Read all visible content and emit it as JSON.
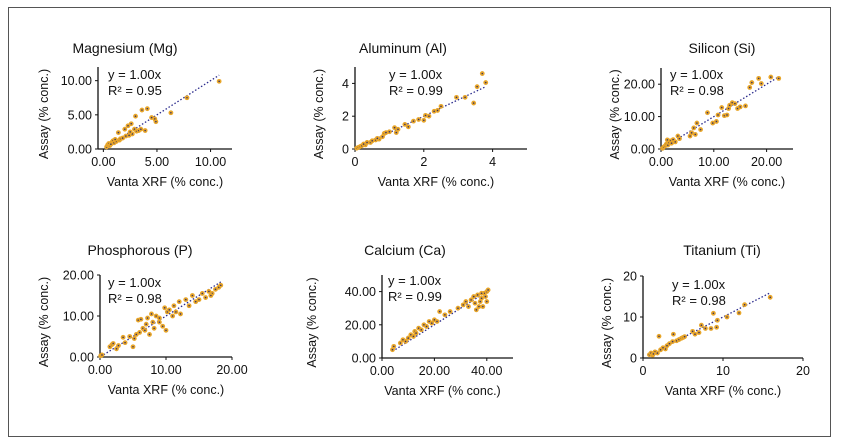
{
  "chart_data": [
    {
      "type": "scatter",
      "title": "Magnesium (Mg)",
      "xlabel": "Vanta XRF (% conc.)",
      "ylabel": "Assay (% conc.)",
      "xlim": [
        -0.5,
        12
      ],
      "ylim": [
        0,
        12
      ],
      "xticks": [
        0,
        5,
        10
      ],
      "xtick_labels": [
        "0.00",
        "5.00",
        "10.00"
      ],
      "yticks": [
        0,
        5,
        10
      ],
      "ytick_labels": [
        "0.00",
        "5.00",
        "10.00"
      ],
      "equation": "y = 1.00x",
      "r2": "R² = 0.95",
      "trend_slope": 1.0,
      "x": [
        0.3,
        0.4,
        0.5,
        0.6,
        0.8,
        0.9,
        1.0,
        1.2,
        1.4,
        1.5,
        1.6,
        1.8,
        2.0,
        2.1,
        2.3,
        2.4,
        2.6,
        2.7,
        2.9,
        3.0,
        3.1,
        3.3,
        3.5,
        3.6,
        3.9,
        4.1,
        4.5,
        4.8,
        4.9,
        6.3,
        7.8,
        10.8,
        1.1,
        2.5,
        0.7
      ],
      "y": [
        0.3,
        0.6,
        0.8,
        0.5,
        1.0,
        1.2,
        0.9,
        1.1,
        2.4,
        1.3,
        1.5,
        1.6,
        2.9,
        1.9,
        3.4,
        2.0,
        3.7,
        2.2,
        2.9,
        4.8,
        2.6,
        2.7,
        2.9,
        5.7,
        2.7,
        5.9,
        4.6,
        4.4,
        4.0,
        5.3,
        7.5,
        9.9,
        1.4,
        2.5,
        0.7
      ]
    },
    {
      "type": "scatter",
      "title": "Aluminum (Al)",
      "xlabel": "Vanta XRF (% conc.)",
      "ylabel": "Assay (% conc.)",
      "xlim": [
        0,
        5
      ],
      "ylim": [
        0,
        5
      ],
      "xticks": [
        0,
        2,
        4
      ],
      "xtick_labels": [
        "0",
        "2",
        "4"
      ],
      "yticks": [
        0,
        2,
        4
      ],
      "ytick_labels": [
        "0",
        "2",
        "4"
      ],
      "equation": "y = 1.00x",
      "r2": "R² = 0.99",
      "trend_slope": 1.0,
      "x": [
        0.05,
        0.1,
        0.15,
        0.2,
        0.3,
        0.35,
        0.45,
        0.5,
        0.6,
        0.7,
        0.8,
        0.85,
        0.9,
        1.0,
        1.15,
        1.2,
        1.25,
        1.45,
        1.55,
        1.7,
        1.85,
        2.0,
        2.05,
        2.15,
        2.3,
        2.4,
        2.5,
        2.95,
        3.2,
        3.45,
        3.55,
        3.7,
        3.8,
        0.25,
        0.65
      ],
      "y": [
        0.05,
        0.1,
        0.15,
        0.2,
        0.25,
        0.4,
        0.4,
        0.5,
        0.55,
        0.6,
        0.75,
        0.95,
        1.0,
        1.05,
        1.3,
        1.0,
        1.2,
        1.5,
        1.35,
        1.7,
        1.8,
        1.75,
        2.05,
        2.0,
        2.3,
        2.35,
        2.6,
        3.15,
        3.15,
        2.8,
        3.8,
        4.6,
        4.05,
        0.3,
        0.65
      ]
    },
    {
      "type": "scatter",
      "title": "Silicon (Si)",
      "xlabel": "Vanta XRF (% conc.)",
      "ylabel": "Assay (% conc.)",
      "xlim": [
        0,
        25
      ],
      "ylim": [
        0,
        25
      ],
      "xticks": [
        0,
        10,
        20
      ],
      "xtick_labels": [
        "0.00",
        "10.00",
        "20.00"
      ],
      "yticks": [
        0,
        10,
        20
      ],
      "ytick_labels": [
        "0.00",
        "10.00",
        "20.00"
      ],
      "equation": "y = 1.00x",
      "r2": "R² = 0.98",
      "trend_slope": 1.0,
      "x": [
        0.3,
        0.5,
        0.8,
        1.0,
        1.2,
        1.3,
        1.5,
        1.8,
        2.0,
        2.3,
        2.7,
        3.2,
        3.5,
        5.5,
        5.8,
        6.2,
        6.5,
        6.8,
        7.5,
        8.8,
        9.8,
        10.5,
        10.8,
        11.5,
        12.0,
        12.5,
        12.8,
        13.0,
        13.5,
        14.0,
        14.5,
        15.0,
        16.0,
        16.8,
        17.2,
        18.5,
        19.0,
        20.8,
        22.3
      ],
      "y": [
        0.2,
        0.6,
        1.0,
        1.5,
        2.8,
        1.2,
        2.0,
        2.5,
        1.8,
        2.9,
        2.2,
        4.0,
        3.2,
        4.0,
        5.0,
        6.5,
        4.5,
        8.0,
        6.0,
        11.2,
        8.0,
        8.5,
        10.5,
        12.8,
        10.3,
        10.5,
        12.5,
        13.5,
        14.3,
        14.0,
        12.5,
        13.0,
        13.3,
        19.0,
        20.5,
        21.8,
        20.2,
        22.2,
        21.8
      ]
    },
    {
      "type": "scatter",
      "title": "Phosphorous (P)",
      "xlabel": "Vanta XRF (% conc.)",
      "ylabel": "Assay (% conc.)",
      "xlim": [
        0,
        20
      ],
      "ylim": [
        0,
        20
      ],
      "xticks": [
        0,
        10,
        20
      ],
      "xtick_labels": [
        "0.00",
        "10.00",
        "20.00"
      ],
      "yticks": [
        0,
        10,
        20
      ],
      "ytick_labels": [
        "0.00",
        "10.00",
        "20.00"
      ],
      "equation": "y = 1.00x",
      "r2": "R² = 0.98",
      "trend_slope": 1.0,
      "x": [
        0.1,
        0.3,
        1.5,
        1.8,
        2.0,
        2.5,
        2.8,
        3.5,
        3.8,
        4.5,
        5.0,
        5.2,
        5.5,
        5.8,
        6.0,
        6.2,
        6.5,
        7.0,
        7.2,
        7.5,
        7.8,
        8.0,
        8.2,
        8.5,
        9.0,
        9.5,
        9.8,
        10.0,
        10.2,
        10.5,
        11.0,
        11.2,
        11.5,
        12.0,
        12.2,
        13.0,
        13.5,
        14.0,
        14.5,
        15.0,
        15.5,
        16.0,
        16.5,
        17.0,
        17.5,
        18.0,
        18.3,
        16.8,
        9.0,
        6.8
      ],
      "y": [
        0.3,
        0.5,
        2.5,
        3.0,
        3.3,
        2.0,
        2.8,
        4.8,
        3.5,
        5.0,
        2.5,
        4.5,
        5.5,
        9.0,
        6.0,
        9.2,
        7.0,
        8.0,
        9.5,
        5.5,
        10.5,
        8.5,
        7.0,
        10.0,
        8.5,
        7.5,
        12.0,
        6.5,
        11.0,
        11.5,
        10.0,
        12.5,
        11.0,
        13.5,
        10.5,
        14.0,
        12.5,
        15.0,
        13.5,
        14.0,
        15.5,
        14.5,
        16.0,
        15.5,
        16.5,
        17.0,
        17.5,
        15.0,
        9.5,
        6.5
      ]
    },
    {
      "type": "scatter",
      "title": "Calcium (Ca)",
      "xlabel": "Vanta XRF (% conc.)",
      "ylabel": "Assay (% conc.)",
      "xlim": [
        0,
        50
      ],
      "ylim": [
        0,
        50
      ],
      "xticks": [
        0,
        20,
        40
      ],
      "xtick_labels": [
        "0.00",
        "20.00",
        "40.00"
      ],
      "yticks": [
        0,
        20,
        40
      ],
      "ytick_labels": [
        "0.00",
        "20.00",
        "40.00"
      ],
      "equation": "y = 1.00x",
      "r2": "R² = 0.99",
      "trend_slope": 1.0,
      "x": [
        4,
        4.5,
        7,
        8,
        9,
        10,
        11,
        12,
        12.5,
        13,
        14,
        15,
        16,
        17,
        18,
        19,
        20,
        21,
        22,
        24,
        26,
        29,
        31,
        32,
        33,
        34,
        35,
        35.5,
        36,
        36.5,
        37,
        37.5,
        38,
        38.5,
        39,
        39.5,
        40,
        40.5,
        40,
        38
      ],
      "y": [
        5,
        7,
        9,
        11,
        10,
        12,
        14,
        13,
        16,
        15,
        18,
        17,
        20,
        19,
        22,
        21,
        23,
        22,
        28,
        26,
        28,
        30,
        32,
        34,
        31,
        35,
        37,
        33,
        29,
        38,
        31,
        34,
        36,
        31,
        39,
        37,
        40,
        41,
        34,
        39
      ]
    },
    {
      "type": "scatter",
      "title": "Titanium (Ti)",
      "xlabel": "Vanta XRF (% conc.)",
      "ylabel": "Assay (% conc.)",
      "xlim": [
        0,
        20
      ],
      "ylim": [
        0,
        20
      ],
      "xticks": [
        0,
        10,
        20
      ],
      "xtick_labels": [
        "0",
        "10",
        "20"
      ],
      "yticks": [
        0,
        10,
        20
      ],
      "ytick_labels": [
        "0",
        "10",
        "20"
      ],
      "equation": "y = 1.00x",
      "r2": "R² = 0.98",
      "trend_slope": 1.0,
      "x": [
        0.8,
        1.0,
        1.2,
        1.5,
        1.8,
        2.0,
        2.2,
        2.8,
        3.0,
        3.3,
        3.7,
        3.8,
        4.2,
        4.5,
        4.8,
        5.0,
        5.2,
        6.2,
        6.5,
        7.0,
        7.3,
        7.8,
        8.5,
        8.8,
        9.2,
        9.3,
        10.5,
        12.0,
        12.7,
        15.9,
        1.3,
        2.5
      ],
      "y": [
        0.8,
        1.2,
        0.7,
        1.5,
        1.2,
        5.3,
        2.0,
        2.2,
        3.0,
        3.5,
        4.0,
        5.8,
        4.2,
        4.5,
        4.8,
        5.0,
        5.2,
        6.5,
        5.8,
        6.2,
        8.0,
        7.2,
        7.2,
        10.9,
        7.5,
        9.2,
        10.0,
        11.0,
        13.0,
        14.8,
        1.0,
        2.5
      ]
    }
  ],
  "colors": {
    "point": "#e8a62a",
    "point_center": "#3d3560",
    "trendline": "#2a2a8c",
    "axis": "#111111",
    "frame": "#555555"
  }
}
